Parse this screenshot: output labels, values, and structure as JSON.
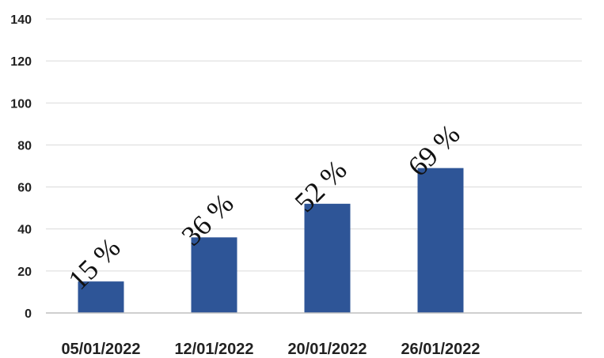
{
  "chart_data": {
    "type": "bar",
    "categories": [
      "05/01/2022",
      "12/01/2022",
      "20/01/2022",
      "26/01/2022"
    ],
    "values": [
      15,
      36,
      52,
      69
    ],
    "data_labels": [
      "15 %",
      "36 %",
      "52 %",
      "69 %"
    ],
    "title": "",
    "xlabel": "",
    "ylabel": "",
    "ylim": [
      0,
      140
    ],
    "yticks": [
      0,
      20,
      40,
      60,
      80,
      100,
      120,
      140
    ],
    "grid": true,
    "legend": "none",
    "colors": {
      "bar": "#2E5597",
      "grid": "#d9d9d9",
      "axis": "#bfbfbf"
    }
  }
}
